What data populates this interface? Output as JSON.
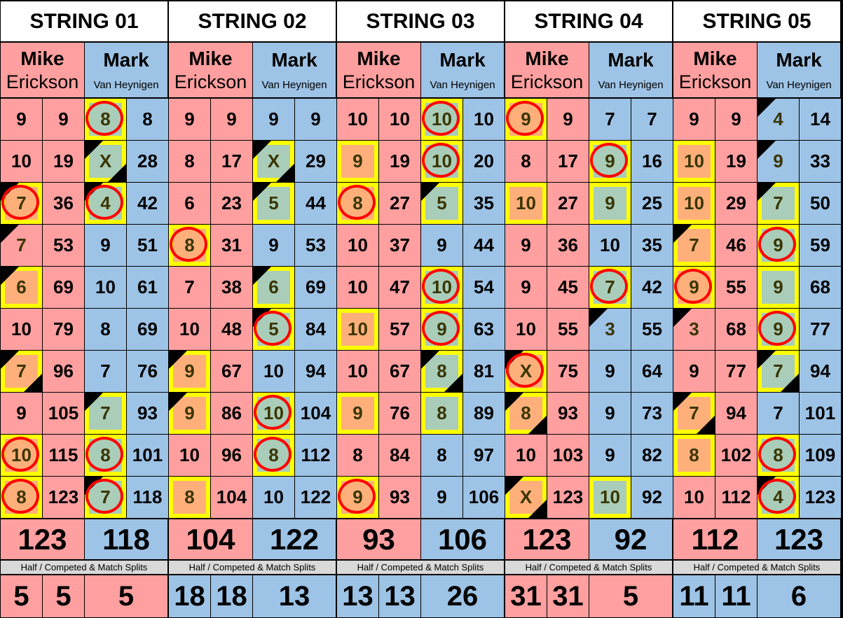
{
  "players": {
    "p1": {
      "first": "Mike",
      "last": "Erickson"
    },
    "p2": {
      "first": "Mark",
      "last": "Van Heynigen"
    }
  },
  "split_label": "Half / Competed & Match Splits",
  "colors": {
    "mike": "#FF9F9F",
    "mark": "#9DC3E6",
    "mike_marked": "#FFB07A",
    "mark_marked": "#A9CDB9",
    "box": "#FFFF00",
    "circle": "#FF0000"
  },
  "legend_note": "Flags: box = yellow box, circle = red circle, tl = black corner top-left, br = black corner bottom-right",
  "strings": [
    {
      "title": "STRING 01",
      "mike": {
        "frames": [
          [
            "9",
            ""
          ],
          [
            "10",
            ""
          ],
          [
            "7",
            "box circle tl"
          ],
          [
            "7",
            "tl"
          ],
          [
            "6",
            "box tl"
          ],
          [
            "10",
            ""
          ],
          [
            "7",
            "box tl br"
          ],
          [
            "9",
            ""
          ],
          [
            "10",
            "box circle"
          ],
          [
            "8",
            "box circle"
          ]
        ],
        "running": [
          "9",
          "19",
          "36",
          "53",
          "69",
          "79",
          "96",
          "105",
          "115",
          "123"
        ],
        "total": "123"
      },
      "mark": {
        "frames": [
          [
            "8",
            "box circle"
          ],
          [
            "X",
            "box tl br"
          ],
          [
            "4",
            "box circle tl"
          ],
          [
            "9",
            ""
          ],
          [
            "10",
            ""
          ],
          [
            "8",
            ""
          ],
          [
            "7",
            ""
          ],
          [
            "7",
            "box tl"
          ],
          [
            "8",
            "box circle"
          ],
          [
            "7",
            "box circle tl"
          ]
        ],
        "running": [
          "8",
          "28",
          "42",
          "51",
          "61",
          "69",
          "76",
          "93",
          "101",
          "118"
        ],
        "total": "118"
      },
      "splits": [
        "5",
        "5",
        "5"
      ],
      "split_color": "mike"
    },
    {
      "title": "STRING 02",
      "mike": {
        "frames": [
          [
            "9",
            ""
          ],
          [
            "8",
            ""
          ],
          [
            "6",
            ""
          ],
          [
            "8",
            "box circle"
          ],
          [
            "7",
            ""
          ],
          [
            "10",
            ""
          ],
          [
            "9",
            "box tl"
          ],
          [
            "9",
            "box tl"
          ],
          [
            "10",
            ""
          ],
          [
            "8",
            "box"
          ]
        ],
        "running": [
          "9",
          "17",
          "23",
          "31",
          "38",
          "48",
          "67",
          "86",
          "96",
          "104"
        ],
        "total": "104"
      },
      "mark": {
        "frames": [
          [
            "9",
            ""
          ],
          [
            "X",
            "box tl br"
          ],
          [
            "5",
            "box tl"
          ],
          [
            "9",
            ""
          ],
          [
            "6",
            "box tl"
          ],
          [
            "5",
            "box circle tl"
          ],
          [
            "10",
            ""
          ],
          [
            "10",
            "box circle"
          ],
          [
            "8",
            "box circle"
          ],
          [
            "10",
            ""
          ]
        ],
        "running": [
          "9",
          "29",
          "44",
          "53",
          "69",
          "84",
          "94",
          "104",
          "112",
          "122"
        ],
        "total": "122"
      },
      "splits": [
        "18",
        "18",
        "13"
      ],
      "split_color": "mark"
    },
    {
      "title": "STRING 03",
      "mike": {
        "frames": [
          [
            "10",
            ""
          ],
          [
            "9",
            "box"
          ],
          [
            "8",
            "box circle"
          ],
          [
            "10",
            ""
          ],
          [
            "10",
            ""
          ],
          [
            "10",
            "box"
          ],
          [
            "10",
            ""
          ],
          [
            "9",
            "box"
          ],
          [
            "8",
            ""
          ],
          [
            "9",
            "box circle"
          ]
        ],
        "running": [
          "10",
          "19",
          "27",
          "37",
          "47",
          "57",
          "67",
          "76",
          "84",
          "93"
        ],
        "total": "93"
      },
      "mark": {
        "frames": [
          [
            "10",
            "box circle"
          ],
          [
            "10",
            "box circle"
          ],
          [
            "5",
            "box tl"
          ],
          [
            "9",
            ""
          ],
          [
            "10",
            "box circle"
          ],
          [
            "9",
            "box circle"
          ],
          [
            "8",
            "box tl br"
          ],
          [
            "8",
            "box"
          ],
          [
            "8",
            ""
          ],
          [
            "9",
            ""
          ]
        ],
        "running": [
          "10",
          "20",
          "35",
          "44",
          "54",
          "63",
          "81",
          "89",
          "97",
          "106"
        ],
        "total": "106"
      },
      "splits": [
        "13",
        "13",
        "26"
      ],
      "split_color": "mark"
    },
    {
      "title": "STRING 04",
      "mike": {
        "frames": [
          [
            "9",
            "box circle"
          ],
          [
            "8",
            ""
          ],
          [
            "10",
            "box"
          ],
          [
            "9",
            ""
          ],
          [
            "9",
            ""
          ],
          [
            "10",
            ""
          ],
          [
            "X",
            "box circle tl"
          ],
          [
            "8",
            "box tl br"
          ],
          [
            "10",
            ""
          ],
          [
            "X",
            "box tl br"
          ]
        ],
        "running": [
          "9",
          "17",
          "27",
          "36",
          "45",
          "55",
          "75",
          "93",
          "103",
          "123"
        ],
        "total": "123"
      },
      "mark": {
        "frames": [
          [
            "7",
            ""
          ],
          [
            "9",
            "box circle"
          ],
          [
            "9",
            "box"
          ],
          [
            "10",
            ""
          ],
          [
            "7",
            "box circle"
          ],
          [
            "3",
            "tl"
          ],
          [
            "9",
            ""
          ],
          [
            "9",
            ""
          ],
          [
            "9",
            ""
          ],
          [
            "10",
            "box"
          ]
        ],
        "running": [
          "7",
          "16",
          "25",
          "35",
          "42",
          "55",
          "64",
          "73",
          "82",
          "92"
        ],
        "total": "92"
      },
      "splits": [
        "31",
        "31",
        "5"
      ],
      "split_color": "mike"
    },
    {
      "title": "STRING 05",
      "mike": {
        "frames": [
          [
            "9",
            ""
          ],
          [
            "10",
            "box"
          ],
          [
            "10",
            "box"
          ],
          [
            "7",
            "box tl"
          ],
          [
            "9",
            "box circle"
          ],
          [
            "3",
            "tl"
          ],
          [
            "9",
            ""
          ],
          [
            "7",
            "box tl br"
          ],
          [
            "8",
            "box"
          ],
          [
            "10",
            ""
          ]
        ],
        "running": [
          "9",
          "19",
          "29",
          "46",
          "55",
          "68",
          "77",
          "94",
          "102",
          "112"
        ],
        "total": "112"
      },
      "mark": {
        "frames": [
          [
            "4",
            "tl"
          ],
          [
            "9",
            "tl"
          ],
          [
            "7",
            "box tl"
          ],
          [
            "9",
            "box circle"
          ],
          [
            "9",
            "box"
          ],
          [
            "9",
            "box circle"
          ],
          [
            "7",
            "box tl br"
          ],
          [
            "7",
            ""
          ],
          [
            "8",
            "box circle"
          ],
          [
            "4",
            "box circle tl"
          ]
        ],
        "running": [
          "14",
          "33",
          "50",
          "59",
          "68",
          "77",
          "94",
          "101",
          "109",
          "123"
        ],
        "total": "123"
      },
      "splits": [
        "11",
        "11",
        "6"
      ],
      "split_color": "mark"
    }
  ]
}
